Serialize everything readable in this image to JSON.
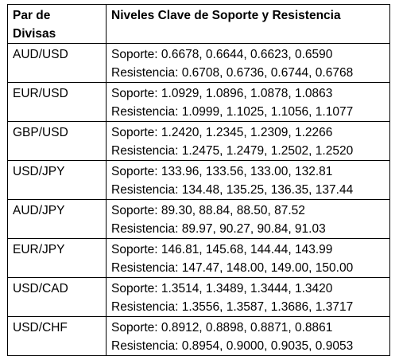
{
  "table": {
    "headers": [
      "Par de Divisas",
      "Niveles Clave de Soporte y Resistencia"
    ],
    "header_pair_lines": [
      "Par de",
      "Divisas"
    ],
    "rows": [
      {
        "pair": "AUD/USD",
        "support": "Soporte: 0.6678, 0.6644, 0.6623, 0.6590",
        "resistance": "Resistencia: 0.6708, 0.6736, 0.6744, 0.6768"
      },
      {
        "pair": "EUR/USD",
        "support": "Soporte: 1.0929, 1.0896, 1.0878, 1.0863",
        "resistance": "Resistencia: 1.0999, 1.1025, 1.1056, 1.1077"
      },
      {
        "pair": "GBP/USD",
        "support": "Soporte: 1.2420, 1.2345, 1.2309, 1.2266",
        "resistance": "Resistencia: 1.2475, 1.2479, 1.2502, 1.2520"
      },
      {
        "pair": "USD/JPY",
        "support": "Soporte: 133.96, 133.56, 133.00, 132.81",
        "resistance": "Resistencia: 134.48, 135.25, 136.35, 137.44"
      },
      {
        "pair": "AUD/JPY",
        "support": "Soporte: 89.30, 88.84, 88.50, 87.52",
        "resistance": "Resistencia: 89.97, 90.27, 90.84, 91.03"
      },
      {
        "pair": "EUR/JPY",
        "support": "Soporte: 146.81, 145.68, 144.44, 143.99",
        "resistance": "Resistencia: 147.47, 148.00, 149.00, 150.00"
      },
      {
        "pair": "USD/CAD",
        "support": "Soporte: 1.3514, 1.3489, 1.3444, 1.3420",
        "resistance": "Resistencia: 1.3556, 1.3587, 1.3686, 1.3717"
      },
      {
        "pair": "USD/CHF",
        "support": "Soporte: 0.8912, 0.8898, 0.8871, 0.8861",
        "resistance": "Resistencia: 0.8954, 0.9000, 0.9035, 0.9053"
      }
    ]
  }
}
